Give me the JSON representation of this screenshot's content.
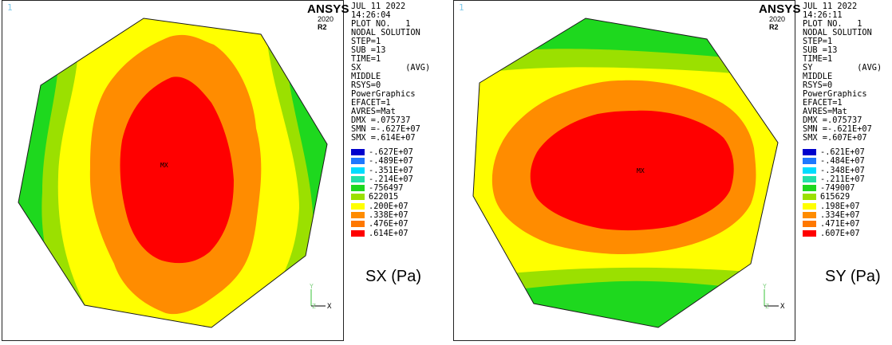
{
  "panels": [
    {
      "window_number": "1",
      "logo": "ANSYS",
      "release_year": "2020",
      "release_tag": "R2",
      "info": [
        "JUL 11 2022",
        "14:26:04",
        "PLOT NO.   1",
        "NODAL SOLUTION",
        "STEP=1",
        "SUB =13",
        "TIME=1",
        "SX         (AVG)",
        "MIDDLE",
        "RSYS=0",
        "PowerGraphics",
        "EFACET=1",
        "AVRES=Mat",
        "DMX =.075737",
        "SMN =-.627E+07",
        "SMX =.614E+07"
      ],
      "legend": [
        {
          "label": "-.627E+07",
          "color": "#0000cc"
        },
        {
          "label": "-.489E+07",
          "color": "#1e78ff"
        },
        {
          "label": "-.351E+07",
          "color": "#00dcff"
        },
        {
          "label": "-.214E+07",
          "color": "#22e0a8"
        },
        {
          "label": "-756497",
          "color": "#1ed81e"
        },
        {
          "label": "622015",
          "color": "#9be000"
        },
        {
          "label": ".200E+07",
          "color": "#ffff00"
        },
        {
          "label": ".338E+07",
          "color": "#ff8c00"
        },
        {
          "label": ".476E+07",
          "color": "#ff7800"
        },
        {
          "label": ".614E+07",
          "color": "#ff0000"
        }
      ],
      "marker": "MX",
      "triad": {
        "y": "Y",
        "z": "Z",
        "x": "X"
      },
      "caption": "SX (Pa)"
    },
    {
      "window_number": "1",
      "logo": "ANSYS",
      "release_year": "2020",
      "release_tag": "R2",
      "info": [
        "JUL 11 2022",
        "14:26:11",
        "PLOT NO.   1",
        "NODAL SOLUTION",
        "STEP=1",
        "SUB =13",
        "TIME=1",
        "SY         (AVG)",
        "MIDDLE",
        "RSYS=0",
        "PowerGraphics",
        "EFACET=1",
        "AVRES=Mat",
        "DMX =.075737",
        "SMN =-.621E+07",
        "SMX =.607E+07"
      ],
      "legend": [
        {
          "label": "-.621E+07",
          "color": "#0000cc"
        },
        {
          "label": "-.484E+07",
          "color": "#1e78ff"
        },
        {
          "label": "-.348E+07",
          "color": "#00dcff"
        },
        {
          "label": "-.211E+07",
          "color": "#22e0a8"
        },
        {
          "label": "-749007",
          "color": "#1ed81e"
        },
        {
          "label": "615629",
          "color": "#9be000"
        },
        {
          "label": ".198E+07",
          "color": "#ffff00"
        },
        {
          "label": ".334E+07",
          "color": "#ff8c00"
        },
        {
          "label": ".471E+07",
          "color": "#ff7800"
        },
        {
          "label": ".607E+07",
          "color": "#ff0000"
        }
      ],
      "marker": "MX",
      "triad": {
        "y": "Y",
        "z": "Z",
        "x": "X"
      },
      "caption": "SY (Pa)"
    }
  ]
}
